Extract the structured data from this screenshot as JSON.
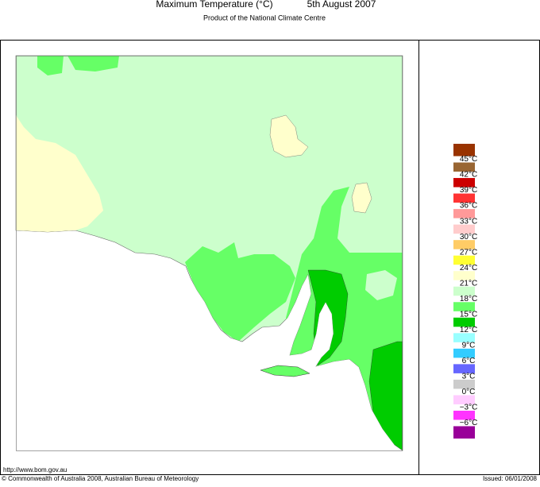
{
  "header": {
    "title": "Maximum Temperature (°C)",
    "date": "5th August 2007",
    "subtitle": "Product of the National Climate Centre"
  },
  "legend": {
    "colors": [
      "#993300",
      "#996633",
      "#cc0000",
      "#ff3333",
      "#ff9999",
      "#ffcccc",
      "#ffcc66",
      "#ffff33",
      "#ffffcc",
      "#ccffcc",
      "#66ff66",
      "#00cc00",
      "#99ffff",
      "#33ccff",
      "#6666ff",
      "#cccccc",
      "#ffccff",
      "#ff33ff",
      "#990099"
    ],
    "labels": [
      "45°C",
      "42°C",
      "39°C",
      "36°C",
      "33°C",
      "30°C",
      "27°C",
      "24°C",
      "21°C",
      "18°C",
      "15°C",
      "12°C",
      "9°C",
      "6°C",
      "3°C",
      "0°C",
      "−3°C",
      "−6°C"
    ]
  },
  "footer": {
    "url": "http://www.bom.gov.au",
    "copyright": "© Commonwealth of Australia 2008, Australian Bureau of Meteorology",
    "issued": "Issued: 06/01/2008"
  }
}
